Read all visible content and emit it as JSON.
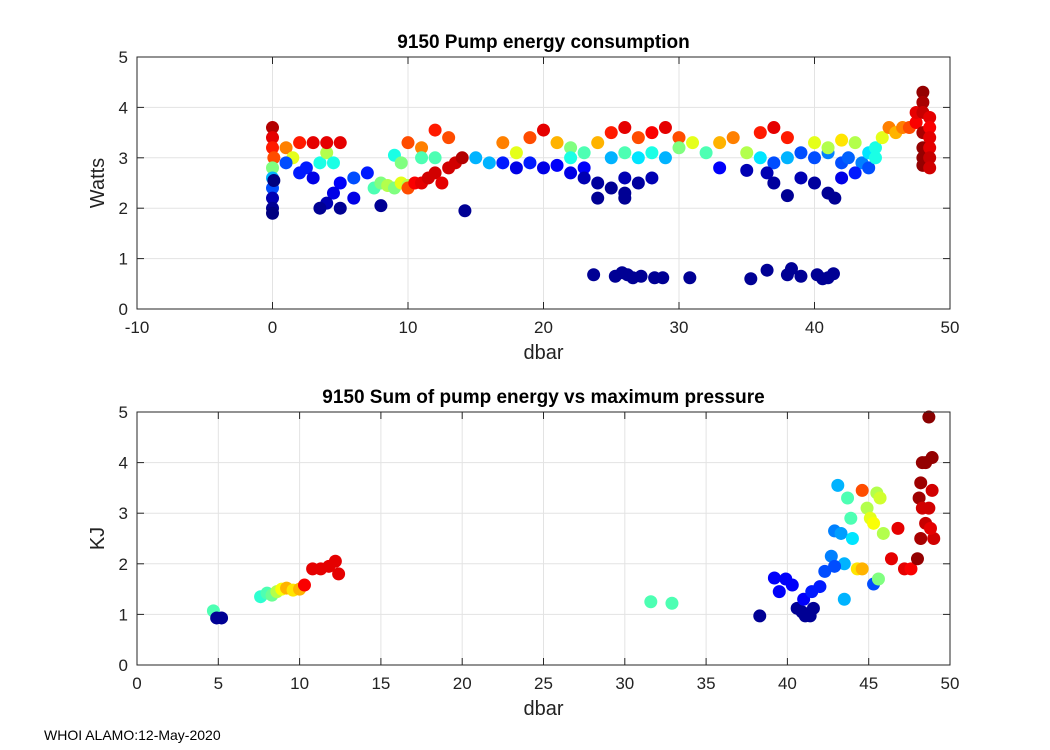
{
  "footer": "WHOI ALAMO:12-May-2020",
  "chart_data": [
    {
      "type": "scatter",
      "title": "9150 Pump energy consumption",
      "xlabel": "dbar",
      "ylabel": "Watts",
      "xlim": [
        -10,
        50
      ],
      "ylim": [
        0,
        5
      ],
      "xticks": [
        -10,
        0,
        10,
        20,
        30,
        40,
        50
      ],
      "yticks": [
        0,
        1,
        2,
        3,
        4,
        5
      ],
      "grid": true,
      "points": [
        [
          0,
          3.6,
          0.95
        ],
        [
          0,
          3.4,
          0.9
        ],
        [
          0,
          3.2,
          0.85
        ],
        [
          0.1,
          3.0,
          0.8
        ],
        [
          0,
          2.8,
          0.5
        ],
        [
          0,
          2.6,
          0.3
        ],
        [
          0,
          2.4,
          0.2
        ],
        [
          0,
          2.2,
          0.05
        ],
        [
          0,
          2.0,
          0.02
        ],
        [
          0,
          1.9,
          0.0
        ],
        [
          0.1,
          2.55,
          0.0
        ],
        [
          1,
          3.2,
          0.75
        ],
        [
          1.5,
          3.0,
          0.6
        ],
        [
          1,
          2.9,
          0.2
        ],
        [
          2,
          2.7,
          0.15
        ],
        [
          2.5,
          2.8,
          0.15
        ],
        [
          3,
          2.6,
          0.1
        ],
        [
          3.5,
          2.9,
          0.4
        ],
        [
          4,
          3.1,
          0.55
        ],
        [
          4.5,
          2.9,
          0.4
        ],
        [
          5,
          2.5,
          0.12
        ],
        [
          4.5,
          2.3,
          0.1
        ],
        [
          4,
          2.1,
          0.05
        ],
        [
          5,
          2.0,
          0.02
        ],
        [
          3.5,
          2.0,
          0.02
        ],
        [
          3,
          3.3,
          0.9
        ],
        [
          4,
          3.3,
          0.9
        ],
        [
          5,
          3.3,
          0.9
        ],
        [
          2,
          3.3,
          0.85
        ],
        [
          6,
          2.6,
          0.2
        ],
        [
          6,
          2.2,
          0.1
        ],
        [
          7,
          2.7,
          0.15
        ],
        [
          8,
          2.05,
          0.02
        ],
        [
          7.5,
          2.4,
          0.45
        ],
        [
          8,
          2.5,
          0.5
        ],
        [
          8.5,
          2.45,
          0.55
        ],
        [
          9,
          2.4,
          0.5
        ],
        [
          9.5,
          2.5,
          0.6
        ],
        [
          10,
          2.45,
          0.55
        ],
        [
          9,
          3.05,
          0.4
        ],
        [
          9.5,
          2.9,
          0.5
        ],
        [
          10,
          2.4,
          0.8
        ],
        [
          10.5,
          2.5,
          0.88
        ],
        [
          11,
          2.5,
          0.9
        ],
        [
          11.5,
          2.6,
          0.92
        ],
        [
          12,
          2.7,
          0.92
        ],
        [
          12.5,
          2.5,
          0.9
        ],
        [
          13,
          2.8,
          0.92
        ],
        [
          13.5,
          2.9,
          0.92
        ],
        [
          14,
          3.0,
          0.95
        ],
        [
          10,
          3.3,
          0.8
        ],
        [
          11,
          3.2,
          0.75
        ],
        [
          12,
          3.55,
          0.85
        ],
        [
          13,
          3.4,
          0.8
        ],
        [
          12,
          3.0,
          0.45
        ],
        [
          11,
          3.0,
          0.45
        ],
        [
          14.2,
          1.95,
          0.02
        ],
        [
          15,
          3.0,
          0.3
        ],
        [
          16,
          2.9,
          0.3
        ],
        [
          17,
          3.3,
          0.75
        ],
        [
          18,
          3.1,
          0.6
        ],
        [
          19,
          3.4,
          0.8
        ],
        [
          20,
          3.55,
          0.9
        ],
        [
          21,
          3.3,
          0.7
        ],
        [
          22,
          3.2,
          0.5
        ],
        [
          17,
          2.9,
          0.15
        ],
        [
          18,
          2.8,
          0.1
        ],
        [
          19,
          2.9,
          0.15
        ],
        [
          20,
          2.8,
          0.1
        ],
        [
          21,
          2.85,
          0.12
        ],
        [
          22,
          2.7,
          0.1
        ],
        [
          23,
          2.8,
          0.12
        ],
        [
          24,
          2.5,
          0.03
        ],
        [
          25,
          2.4,
          0.02
        ],
        [
          26,
          2.3,
          0.02
        ],
        [
          27,
          2.5,
          0.03
        ],
        [
          24,
          2.2,
          0.02
        ],
        [
          26,
          2.6,
          0.05
        ],
        [
          25,
          3.0,
          0.3
        ],
        [
          26,
          3.1,
          0.45
        ],
        [
          27,
          3.0,
          0.35
        ],
        [
          28,
          3.1,
          0.4
        ],
        [
          29,
          3.0,
          0.3
        ],
        [
          22,
          3.0,
          0.4
        ],
        [
          23,
          3.1,
          0.45
        ],
        [
          24,
          3.3,
          0.7
        ],
        [
          25,
          3.5,
          0.85
        ],
        [
          26,
          3.6,
          0.9
        ],
        [
          27,
          3.4,
          0.8
        ],
        [
          28,
          3.5,
          0.88
        ],
        [
          29,
          3.6,
          0.9
        ],
        [
          30,
          3.4,
          0.8
        ],
        [
          23,
          2.6,
          0.05
        ],
        [
          28,
          2.6,
          0.05
        ],
        [
          26,
          2.2,
          0.02
        ],
        [
          30,
          3.2,
          0.5
        ],
        [
          31,
          3.3,
          0.6
        ],
        [
          32,
          3.1,
          0.45
        ],
        [
          33,
          3.3,
          0.7
        ],
        [
          34,
          3.4,
          0.75
        ],
        [
          35,
          3.1,
          0.55
        ],
        [
          36,
          3.5,
          0.85
        ],
        [
          37,
          3.6,
          0.9
        ],
        [
          38,
          3.4,
          0.85
        ],
        [
          33,
          2.8,
          0.12
        ],
        [
          35,
          2.75,
          0.05
        ],
        [
          36,
          3.0,
          0.35
        ],
        [
          37,
          2.9,
          0.2
        ],
        [
          38,
          3.0,
          0.3
        ],
        [
          36.5,
          2.7,
          0.05
        ],
        [
          37,
          2.5,
          0.03
        ],
        [
          38,
          2.25,
          0.02
        ],
        [
          39,
          2.6,
          0.05
        ],
        [
          40,
          2.5,
          0.03
        ],
        [
          41,
          2.3,
          0.02
        ],
        [
          41.5,
          2.2,
          0.02
        ],
        [
          39,
          3.1,
          0.2
        ],
        [
          40,
          3.0,
          0.2
        ],
        [
          41,
          3.1,
          0.25
        ],
        [
          42,
          2.9,
          0.2
        ],
        [
          42.5,
          3.0,
          0.22
        ],
        [
          40,
          3.3,
          0.6
        ],
        [
          41,
          3.2,
          0.55
        ],
        [
          42,
          3.35,
          0.65
        ],
        [
          43,
          3.3,
          0.55
        ],
        [
          43.5,
          2.9,
          0.25
        ],
        [
          44,
          3.1,
          0.35
        ],
        [
          44.5,
          3.2,
          0.4
        ],
        [
          45,
          3.4,
          0.6
        ],
        [
          45.5,
          3.6,
          0.75
        ],
        [
          46,
          3.5,
          0.7
        ],
        [
          46.5,
          3.6,
          0.75
        ],
        [
          47,
          3.6,
          0.8
        ],
        [
          47.5,
          3.7,
          0.88
        ],
        [
          42,
          2.6,
          0.1
        ],
        [
          43,
          2.7,
          0.15
        ],
        [
          44,
          2.8,
          0.2
        ],
        [
          44.5,
          3.0,
          0.4
        ],
        [
          47.5,
          3.9,
          0.9
        ],
        [
          48,
          4.3,
          0.98
        ],
        [
          48,
          4.1,
          0.96
        ],
        [
          48,
          3.9,
          0.93
        ],
        [
          48,
          3.5,
          0.96
        ],
        [
          48,
          3.2,
          0.98
        ],
        [
          48,
          3.0,
          0.98
        ],
        [
          48,
          2.85,
          0.98
        ],
        [
          48.5,
          3.8,
          0.9
        ],
        [
          48.5,
          3.6,
          0.88
        ],
        [
          48.5,
          3.4,
          0.9
        ],
        [
          48.5,
          3.2,
          0.9
        ],
        [
          48.5,
          3.0,
          0.93
        ],
        [
          48.5,
          2.8,
          0.92
        ],
        [
          23.7,
          0.68,
          0.02
        ],
        [
          25.3,
          0.65,
          0.02
        ],
        [
          25.8,
          0.72,
          0.02
        ],
        [
          26.2,
          0.68,
          0.02
        ],
        [
          26.6,
          0.62,
          0.02
        ],
        [
          27.2,
          0.65,
          0.02
        ],
        [
          28.2,
          0.62,
          0.02
        ],
        [
          28.8,
          0.62,
          0.02
        ],
        [
          30.8,
          0.62,
          0.02
        ],
        [
          35.3,
          0.6,
          0.02
        ],
        [
          36.5,
          0.77,
          0.02
        ],
        [
          38,
          0.68,
          0.02
        ],
        [
          38.3,
          0.8,
          0.02
        ],
        [
          39,
          0.65,
          0.02
        ],
        [
          40.2,
          0.68,
          0.02
        ],
        [
          40.6,
          0.6,
          0.02
        ],
        [
          41,
          0.62,
          0.02
        ],
        [
          41.4,
          0.7,
          0.02
        ]
      ]
    },
    {
      "type": "scatter",
      "title": "9150 Sum of pump energy vs maximum pressure",
      "xlabel": "dbar",
      "ylabel": "KJ",
      "xlim": [
        0,
        50
      ],
      "ylim": [
        0,
        5
      ],
      "xticks": [
        0,
        5,
        10,
        15,
        20,
        25,
        30,
        35,
        40,
        45,
        50
      ],
      "yticks": [
        0,
        1,
        2,
        3,
        4,
        5
      ],
      "grid": true,
      "points": [
        [
          4.7,
          1.07,
          0.45
        ],
        [
          4.9,
          0.93,
          0.02
        ],
        [
          5.2,
          0.93,
          0.02
        ],
        [
          7.6,
          1.35,
          0.42
        ],
        [
          8.0,
          1.42,
          0.45
        ],
        [
          8.3,
          1.38,
          0.48
        ],
        [
          8.6,
          1.45,
          0.55
        ],
        [
          8.9,
          1.5,
          0.62
        ],
        [
          9.2,
          1.52,
          0.7
        ],
        [
          9.6,
          1.48,
          0.65
        ],
        [
          10.0,
          1.5,
          0.7
        ],
        [
          10.3,
          1.58,
          0.88
        ],
        [
          10.8,
          1.9,
          0.9
        ],
        [
          11.3,
          1.9,
          0.9
        ],
        [
          11.8,
          1.95,
          0.9
        ],
        [
          12.2,
          2.05,
          0.9
        ],
        [
          12.4,
          1.8,
          0.9
        ],
        [
          31.6,
          1.25,
          0.45
        ],
        [
          32.9,
          1.22,
          0.45
        ],
        [
          38.3,
          0.97,
          0.02
        ],
        [
          39.2,
          1.72,
          0.12
        ],
        [
          39.5,
          1.45,
          0.12
        ],
        [
          39.9,
          1.7,
          0.12
        ],
        [
          40.3,
          1.58,
          0.12
        ],
        [
          40.6,
          1.12,
          0.02
        ],
        [
          40.9,
          1.05,
          0.02
        ],
        [
          41.1,
          0.97,
          0.02
        ],
        [
          41.4,
          0.97,
          0.02
        ],
        [
          41.6,
          1.12,
          0.02
        ],
        [
          41.0,
          1.3,
          0.12
        ],
        [
          41.5,
          1.45,
          0.15
        ],
        [
          42.0,
          1.55,
          0.15
        ],
        [
          42.3,
          1.85,
          0.2
        ],
        [
          42.7,
          2.15,
          0.25
        ],
        [
          42.9,
          2.65,
          0.25
        ],
        [
          43.1,
          3.55,
          0.3
        ],
        [
          43.3,
          2.6,
          0.28
        ],
        [
          43.5,
          2.0,
          0.3
        ],
        [
          43.7,
          3.3,
          0.45
        ],
        [
          43.9,
          2.9,
          0.45
        ],
        [
          44.0,
          2.5,
          0.35
        ],
        [
          44.3,
          1.9,
          0.65
        ],
        [
          44.6,
          1.9,
          0.7
        ],
        [
          44.9,
          3.1,
          0.55
        ],
        [
          45.1,
          2.9,
          0.6
        ],
        [
          45.3,
          2.8,
          0.62
        ],
        [
          45.5,
          3.4,
          0.55
        ],
        [
          45.7,
          3.3,
          0.58
        ],
        [
          45.9,
          2.6,
          0.55
        ],
        [
          45.3,
          1.6,
          0.2
        ],
        [
          45.6,
          1.7,
          0.5
        ],
        [
          44.6,
          3.45,
          0.8
        ],
        [
          43.5,
          1.3,
          0.3
        ],
        [
          42.9,
          1.95,
          0.2
        ],
        [
          46.4,
          2.1,
          0.9
        ],
        [
          46.8,
          2.7,
          0.9
        ],
        [
          47.2,
          1.9,
          0.9
        ],
        [
          47.6,
          1.9,
          0.88
        ],
        [
          48.0,
          2.1,
          0.98
        ],
        [
          48.1,
          3.3,
          0.97
        ],
        [
          48.2,
          3.6,
          0.97
        ],
        [
          48.3,
          4.0,
          0.98
        ],
        [
          48.5,
          4.0,
          0.98
        ],
        [
          48.7,
          4.9,
          0.99
        ],
        [
          48.9,
          4.1,
          0.98
        ],
        [
          48.2,
          2.5,
          0.96
        ],
        [
          48.5,
          2.8,
          0.93
        ],
        [
          48.7,
          3.1,
          0.92
        ],
        [
          48.9,
          3.45,
          0.92
        ],
        [
          49.0,
          2.5,
          0.92
        ],
        [
          48.8,
          2.7,
          0.9
        ],
        [
          48.3,
          3.1,
          0.92
        ]
      ]
    }
  ]
}
